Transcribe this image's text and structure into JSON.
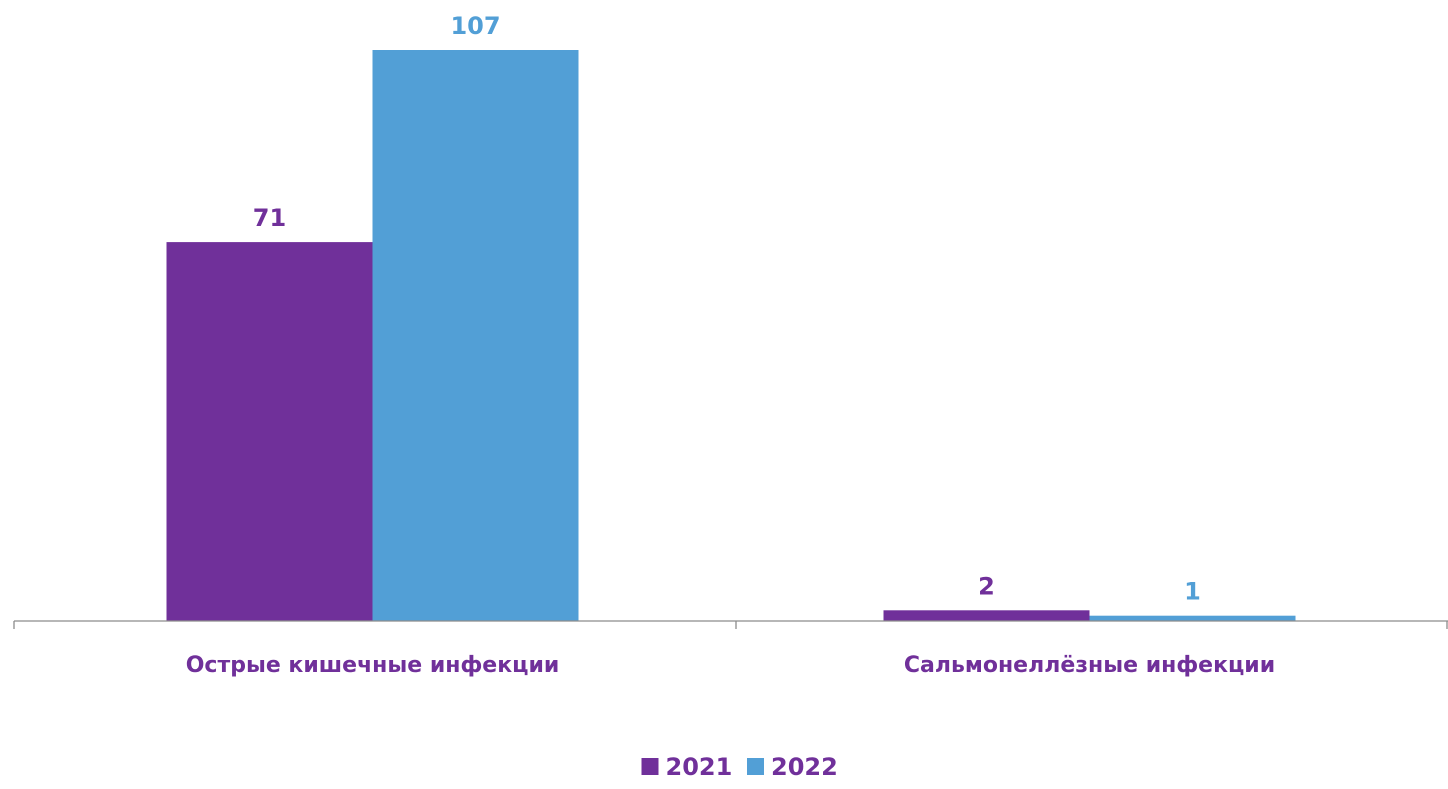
{
  "chart_data": {
    "type": "bar",
    "categories": [
      "Острые кишечные инфекции",
      "Сальмонеллёзные инфекции"
    ],
    "series": [
      {
        "name": "2021",
        "values": [
          71,
          2
        ],
        "color": "#70309A"
      },
      {
        "name": "2022",
        "values": [
          107,
          1
        ],
        "color": "#529FD6"
      }
    ],
    "ylim": [
      0,
      107
    ],
    "grid": false,
    "legend": "bottom-center",
    "axis_label_color": "#70309A"
  }
}
